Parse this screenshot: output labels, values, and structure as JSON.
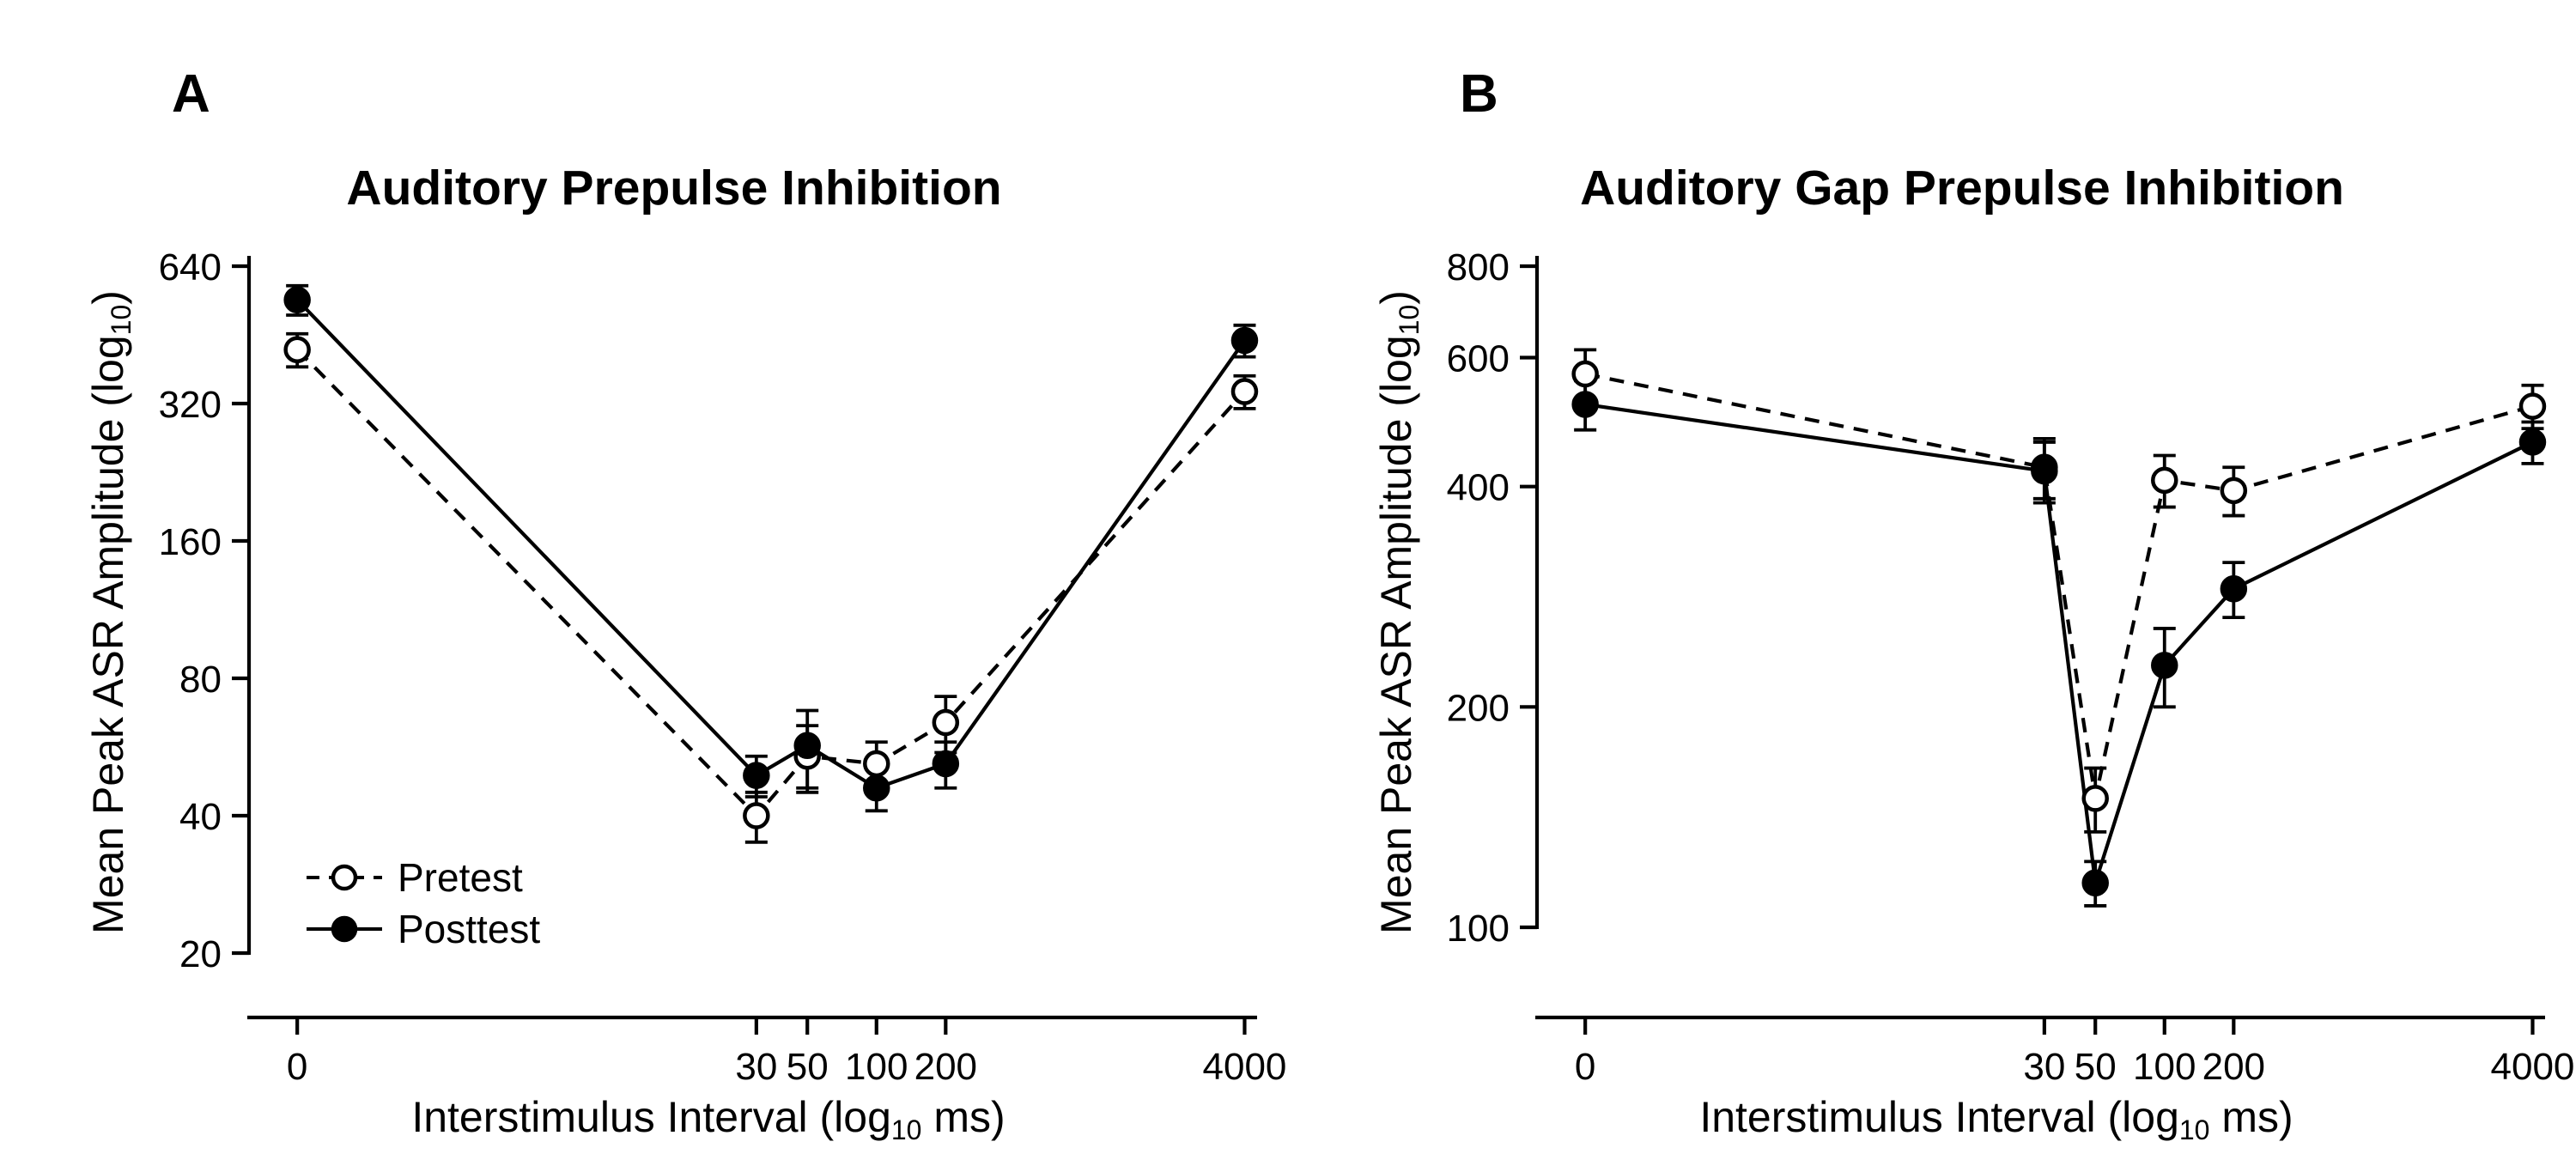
{
  "figure": {
    "background_color": "#ffffff",
    "ink_color": "#000000",
    "panels": [
      {
        "panel_label": "A",
        "title": "Auditory Prepulse Inhibition",
        "y_axis_label": {
          "pre": "Mean Peak ASR Amplitude (log",
          "sub": "10",
          "post": ")"
        },
        "x_axis_label": {
          "pre": "Interstimulus Interval (log",
          "sub": "10",
          "post": " ms)"
        },
        "has_legend": true
      },
      {
        "panel_label": "B",
        "title": "Auditory Gap Prepulse Inhibition",
        "y_axis_label": {
          "pre": "Mean Peak ASR Amplitude (log",
          "sub": "10",
          "post": ")"
        },
        "x_axis_label": {
          "pre": "Interstimulus Interval (log",
          "sub": "10",
          "post": " ms)"
        },
        "has_legend": false
      }
    ]
  },
  "chart_data": [
    {
      "type": "line",
      "panel": "A",
      "title": "Auditory Prepulse Inhibition",
      "xlabel": "Interstimulus Interval (log10 ms)",
      "ylabel": "Mean Peak ASR Amplitude (log10)",
      "x": [
        0,
        30,
        50,
        100,
        200,
        4000
      ],
      "x_scale": "log10, value 0 plotted at left end of axis",
      "y_scale": "log",
      "y_ticks": [
        640,
        320,
        160,
        80,
        40,
        20
      ],
      "y_range": [
        20,
        640
      ],
      "grid": false,
      "legend_position": "inside lower-left",
      "series": [
        {
          "name": "Pretest",
          "marker": "open-circle",
          "line_style": "dashed",
          "values": [
            420,
            40,
            54,
            52,
            64,
            340
          ],
          "error": [
            35,
            5,
            9,
            6,
            9,
            28
          ]
        },
        {
          "name": "Posttest",
          "marker": "filled-circle",
          "line_style": "solid",
          "values": [
            540,
            49,
            57,
            46,
            52,
            440
          ],
          "error": [
            40,
            5,
            11,
            5,
            6,
            35
          ]
        }
      ]
    },
    {
      "type": "line",
      "panel": "B",
      "title": "Auditory Gap Prepulse Inhibition",
      "xlabel": "Interstimulus Interval (log10 ms)",
      "ylabel": "Mean Peak ASR Amplitude (log10)",
      "x": [
        0,
        30,
        50,
        100,
        200,
        4000
      ],
      "x_scale": "log10, value 0 plotted at left end of axis",
      "y_scale": "log",
      "y_ticks": [
        800,
        600,
        400,
        200,
        100
      ],
      "y_range": [
        100,
        800
      ],
      "grid": false,
      "legend_position": "none (shared with panel A)",
      "series": [
        {
          "name": "Pretest",
          "marker": "open-circle",
          "line_style": "dashed",
          "values": [
            570,
            425,
            150,
            408,
            395,
            515
          ],
          "error": [
            45,
            40,
            15,
            33,
            30,
            35
          ]
        },
        {
          "name": "Posttest",
          "marker": "filled-circle",
          "line_style": "solid",
          "values": [
            518,
            420,
            115,
            228,
            290,
            460
          ],
          "error": [
            40,
            40,
            8,
            28,
            25,
            30
          ]
        }
      ]
    }
  ]
}
